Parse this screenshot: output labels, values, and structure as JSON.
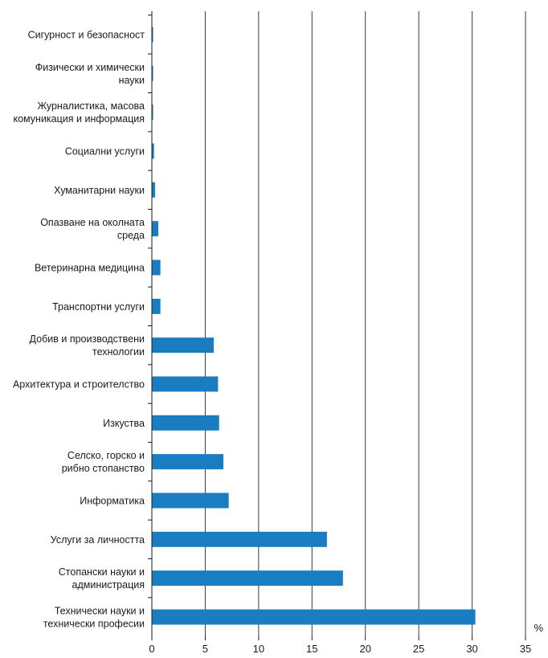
{
  "chart_data": {
    "type": "bar",
    "orientation": "horizontal",
    "categories": [
      [
        "Сигурност и безопасност"
      ],
      [
        "Физически и химически",
        "науки"
      ],
      [
        "Журналистика, масова",
        "комуникация и информация"
      ],
      [
        "Социални услуги"
      ],
      [
        "Хуманитарни науки"
      ],
      [
        "Опазване на околната",
        "среда"
      ],
      [
        "Ветеринарна медицина"
      ],
      [
        "Транспортни услуги"
      ],
      [
        "Добив и производствени",
        "технологии"
      ],
      [
        "Архитектура и строителство"
      ],
      [
        "Изкуства"
      ],
      [
        "Селско, горско и",
        "рибно стопанство"
      ],
      [
        "Информатика"
      ],
      [
        "Услуги за личността"
      ],
      [
        "Стопански науки и",
        "администрация"
      ],
      [
        "Технически науки и",
        "технически професии"
      ]
    ],
    "values": [
      0.1,
      0.1,
      0.1,
      0.2,
      0.3,
      0.6,
      0.8,
      0.8,
      5.8,
      6.2,
      6.3,
      6.7,
      7.2,
      16.4,
      17.9,
      30.3
    ],
    "xticks": [
      "0",
      "5",
      "10",
      "15",
      "20",
      "25",
      "30",
      "35"
    ],
    "xlim": [
      0,
      35
    ],
    "unit": "%",
    "grid": "vertical",
    "bar_color": "#1a7cc1"
  }
}
